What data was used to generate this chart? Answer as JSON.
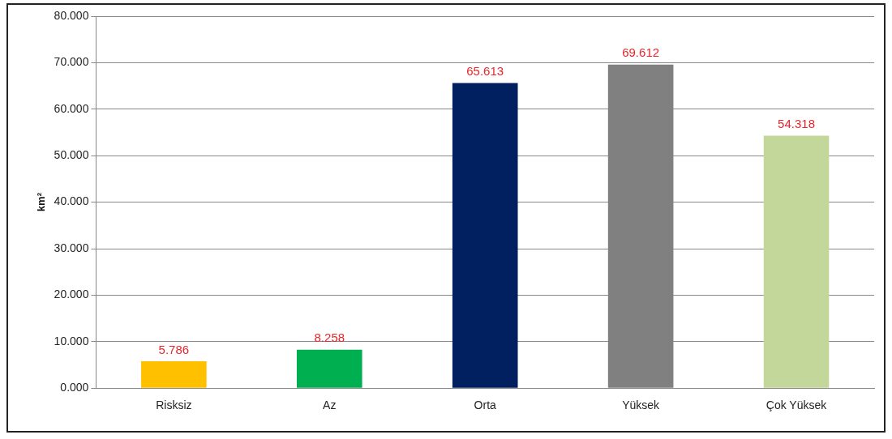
{
  "chart_data": {
    "type": "bar",
    "ylabel": "km²",
    "categories": [
      "Risksiz",
      "Az",
      "Orta",
      "Yüksek",
      "Çok Yüksek"
    ],
    "values": [
      5.786,
      8.258,
      65.613,
      69.612,
      54.318
    ],
    "colors": [
      "#ffc000",
      "#00b050",
      "#002060",
      "#808080",
      "#c4d79b"
    ],
    "value_labels": [
      "5.786",
      "8.258",
      "65.613",
      "69.612",
      "54.318"
    ],
    "ylim": [
      0,
      80
    ],
    "yticks": [
      {
        "value": 0,
        "label": "0.000"
      },
      {
        "value": 10,
        "label": "10.000"
      },
      {
        "value": 20,
        "label": "20.000"
      },
      {
        "value": 30,
        "label": "30.000"
      },
      {
        "value": 40,
        "label": "40.000"
      },
      {
        "value": 50,
        "label": "50.000"
      },
      {
        "value": 60,
        "label": "60.000"
      },
      {
        "value": 70,
        "label": "70.000"
      },
      {
        "value": 80,
        "label": "80.000"
      }
    ],
    "grid": "y"
  }
}
